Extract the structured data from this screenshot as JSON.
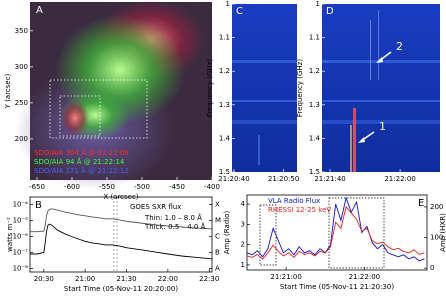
{
  "chart_data": [
    {
      "type": "image",
      "label": "A",
      "xlabel": "X (arcsec)",
      "ylabel": "Y (arcsec)",
      "xlim": [
        -660,
        -400
      ],
      "xticks": [
        -650,
        -600,
        -550,
        -500,
        -450,
        -400
      ],
      "ylim": [
        143,
        390
      ],
      "yticks": [
        200,
        250,
        300,
        350
      ],
      "annotations": [
        {
          "text": "SDO/AIA 304 Å @ 21:22:08",
          "color": "#ff2a2a"
        },
        {
          "text": "SDO/AIA 94 Å @ 21:22:14",
          "color": "#33ff33"
        },
        {
          "text": "SDO/AIA 171 Å @ 21:22:12",
          "color": "#4a5cff"
        }
      ]
    },
    {
      "type": "spectrogram",
      "label": "C",
      "ylabel": "Frequency (GHz)",
      "xlim": [
        39.6,
        52.7
      ],
      "xticks": [
        {
          "value": 40,
          "label": "21:20:40"
        },
        {
          "value": 50,
          "label": "21:20:50"
        }
      ],
      "ylim": [
        1.5,
        1.0
      ],
      "yticks": [
        1.0,
        1.1,
        1.2,
        1.3,
        1.4,
        1.5
      ]
    },
    {
      "type": "spectrogram",
      "label": "D",
      "ylabel": "Frequency (GHz)",
      "xlim": [
        97.7,
        131.4
      ],
      "xticks": [
        {
          "value": 100,
          "label": "21:21:40"
        },
        {
          "value": 120,
          "label": "21:22:00"
        }
      ],
      "ylim": [
        1.5,
        1.0
      ],
      "yticks": [
        1.0,
        1.1,
        1.2,
        1.3,
        1.4,
        1.5
      ],
      "annotations": [
        {
          "text": "1"
        },
        {
          "text": "2"
        }
      ]
    },
    {
      "type": "line",
      "label": "B",
      "ylabel": "watts m⁻²",
      "xlabel": "Start Time (05-Nov-11 20:20:00)",
      "log_y": true,
      "legend_title": "GOES SXR flux",
      "xlim": [
        0,
        132
      ],
      "xticks": [
        {
          "value": 10,
          "label": "20:30"
        },
        {
          "value": 40,
          "label": "21:00"
        },
        {
          "value": 70,
          "label": "21:30"
        },
        {
          "value": 100,
          "label": "22:00"
        },
        {
          "value": 130,
          "label": "22:30"
        }
      ],
      "ylim": [
        6e-09,
        0.0003
      ],
      "yticks": [
        {
          "value": 1e-08,
          "label": "10⁻⁸"
        },
        {
          "value": 1e-07,
          "label": "10⁻⁷"
        },
        {
          "value": 1e-06,
          "label": "10⁻⁶"
        },
        {
          "value": 1e-05,
          "label": "10⁻⁵"
        },
        {
          "value": 0.0001,
          "label": "10⁻⁴"
        }
      ],
      "y2lim": [
        6e-09,
        0.0003
      ],
      "y2ticks": [
        {
          "value": 1e-08,
          "label": "A"
        },
        {
          "value": 1e-07,
          "label": "B"
        },
        {
          "value": 1e-06,
          "label": "C"
        },
        {
          "value": 1e-05,
          "label": "M"
        },
        {
          "value": 0.0001,
          "label": "X"
        }
      ],
      "x": [
        0,
        5,
        10,
        11,
        12,
        13,
        14,
        16,
        18,
        20,
        25,
        30,
        35,
        40,
        45,
        50,
        55,
        60,
        65,
        70,
        80,
        90,
        100,
        110,
        120,
        132
      ],
      "series": [
        {
          "name": "Thin: 1.0 – 8.0 Å",
          "color": "#555555",
          "values": [
            2e-06,
            2e-06,
            2.2e-06,
            5e-06,
            2e-05,
            4e-05,
            5e-05,
            5.5e-05,
            5e-05,
            4.5e-05,
            3.5e-05,
            2.8e-05,
            2.3e-05,
            2e-05,
            1.7e-05,
            1.5e-05,
            1.3e-05,
            1.3e-05,
            1.1e-05,
            9e-06,
            7e-06,
            5.5e-06,
            4.5e-06,
            4e-06,
            3.5e-06,
            3e-06
          ]
        },
        {
          "name": "Thick: 0.5 – 4.0 Å",
          "color": "#000000",
          "values": [
            8e-08,
            8e-08,
            1e-07,
            4e-07,
            2e-06,
            5e-06,
            6e-06,
            5e-06,
            3.5e-06,
            2.5e-06,
            1.5e-06,
            1e-06,
            7e-07,
            5e-07,
            4e-07,
            3.5e-07,
            3e-07,
            3e-07,
            2.5e-07,
            2e-07,
            1.5e-07,
            1.1e-07,
            8e-08,
            6e-08,
            5e-08,
            4e-08
          ]
        }
      ]
    },
    {
      "type": "line",
      "label": "E",
      "ylabel": "Amp (Radio)",
      "y2label": "Amp (HXR)",
      "xlabel": "Start Time (05-Nov-11 21:20:30)",
      "xlim": [
        0,
        138
      ],
      "xticks": [
        {
          "value": 30,
          "label": "21:21:00"
        },
        {
          "value": 90,
          "label": "21:22:00"
        }
      ],
      "ylim": [
        0.75,
        4.45
      ],
      "yticks": [
        1,
        2,
        3,
        4
      ],
      "y2lim": [
        -6,
        239
      ],
      "y2ticks": [
        0,
        100,
        200
      ],
      "x": [
        0,
        4,
        8,
        12,
        16,
        20,
        24,
        28,
        32,
        36,
        40,
        44,
        48,
        52,
        56,
        60,
        64,
        68,
        72,
        76,
        80,
        84,
        88,
        92,
        96,
        100,
        104,
        108,
        112,
        116,
        120,
        124,
        128,
        132,
        136
      ],
      "series": [
        {
          "name": "VLA Radio Flux",
          "color": "#1010d0",
          "values": [
            1.6,
            1.5,
            1.7,
            1.4,
            1.8,
            2.8,
            2.2,
            1.6,
            1.8,
            1.5,
            1.9,
            1.6,
            1.7,
            1.5,
            1.8,
            1.6,
            2.0,
            4.0,
            3.2,
            4.3,
            3.6,
            4.1,
            2.6,
            2.9,
            2.1,
            1.8,
            2.0,
            1.6,
            1.5,
            1.4,
            1.5,
            1.3,
            1.4,
            1.2,
            1.3
          ]
        },
        {
          "name": "RHESSI 12-25 keV",
          "color": "#e02020",
          "axis": "y2",
          "values": [
            40,
            35,
            45,
            30,
            50,
            75,
            55,
            40,
            50,
            35,
            55,
            45,
            50,
            40,
            55,
            50,
            70,
            150,
            130,
            200,
            180,
            160,
            120,
            130,
            90,
            80,
            85,
            70,
            60,
            65,
            55,
            50,
            60,
            45,
            50
          ]
        }
      ]
    }
  ]
}
